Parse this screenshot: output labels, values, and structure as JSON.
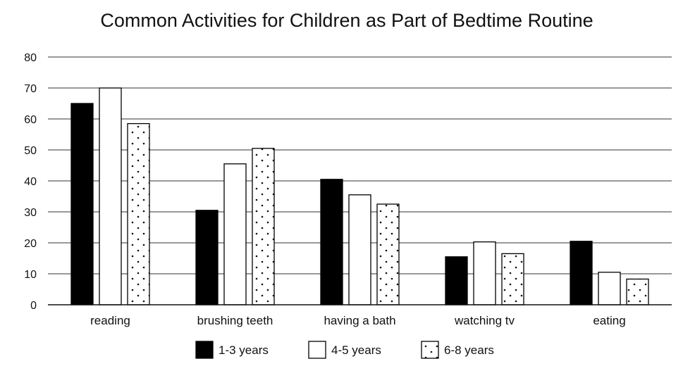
{
  "chart_data": {
    "type": "bar",
    "title": "Common Activities for Children as Part of Bedtime Routine",
    "xlabel": "",
    "ylabel": "",
    "ylim": [
      0,
      80
    ],
    "yticks": [
      0,
      10,
      20,
      30,
      40,
      50,
      60,
      70,
      80
    ],
    "grid": true,
    "legend_position": "bottom",
    "categories": [
      "reading",
      "brushing teeth",
      "having a bath",
      "watching tv",
      "eating"
    ],
    "series": [
      {
        "name": "1-3 years",
        "fill": "solid",
        "color": "#000000",
        "values": [
          65,
          30.5,
          40.5,
          15.5,
          20.5
        ]
      },
      {
        "name": "4-5 years",
        "fill": "empty",
        "color": "#ffffff",
        "values": [
          70,
          45.5,
          35.5,
          20.3,
          10.5
        ]
      },
      {
        "name": "6-8 years",
        "fill": "dotted",
        "color": "#ffffff",
        "values": [
          58.5,
          50.5,
          32.5,
          16.5,
          8.3
        ]
      }
    ]
  }
}
